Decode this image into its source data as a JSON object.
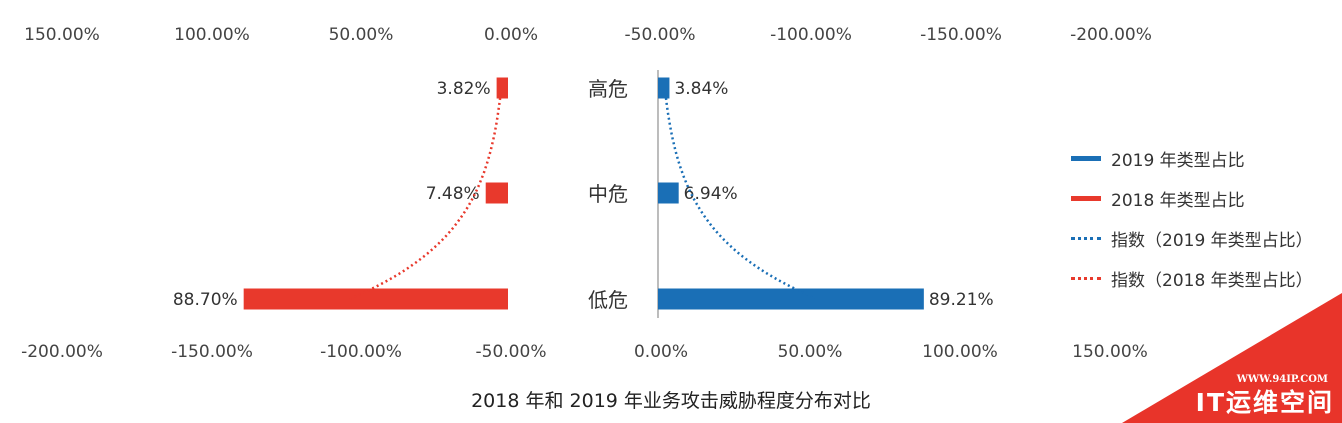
{
  "chart_data": {
    "type": "bar",
    "title": "2018 年和 2019 年业务攻击威胁程度分布对比",
    "categories": [
      "高危",
      "中危",
      "低危"
    ],
    "series": [
      {
        "name": "2019 年类型占比",
        "values": [
          3.84,
          6.94,
          89.21
        ],
        "value_labels": [
          "3.84%",
          "6.94%",
          "89.21%"
        ],
        "color": "#1a6fb6"
      },
      {
        "name": "2018 年类型占比",
        "values": [
          3.82,
          7.48,
          88.7
        ],
        "value_labels": [
          "3.82%",
          "7.48%",
          "88.70%"
        ],
        "color": "#e8392c"
      },
      {
        "name": "指数（2019 年类型占比）",
        "style": "dotted",
        "color": "#1a6fb6"
      },
      {
        "name": "指数（2018 年类型占比）",
        "style": "dotted",
        "color": "#e8392c"
      }
    ],
    "top_axis_left_ticks": [
      "150.00%",
      "100.00%",
      "50.00%",
      "0.00%"
    ],
    "top_axis_right_ticks": [
      "-50.00%",
      "-100.00%",
      "-150.00%",
      "-200.00%"
    ],
    "bottom_axis_left_ticks": [
      "-200.00%",
      "-150.00%",
      "-100.00%",
      "-50.00%"
    ],
    "bottom_axis_right_ticks": [
      "0.00%",
      "50.00%",
      "100.00%",
      "150.00%"
    ],
    "legend_position": "right",
    "grid": false
  },
  "watermark": {
    "url": "WWW.94IP.COM",
    "name": "IT运维空间"
  }
}
